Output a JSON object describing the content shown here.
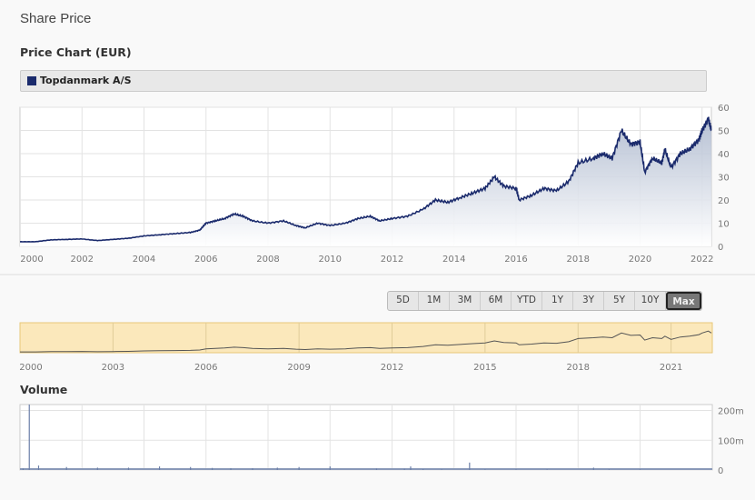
{
  "header": {
    "title": "Share Price",
    "subtitle": "Price Chart (EUR)",
    "volume_title": "Volume"
  },
  "legend": {
    "label": "Topdanmark A/S",
    "color": "#1a2a6c"
  },
  "ranges": {
    "buttons": [
      "5D",
      "1M",
      "3M",
      "6M",
      "YTD",
      "1Y",
      "3Y",
      "5Y",
      "10Y",
      "Max"
    ],
    "active": "Max"
  },
  "chart_data": [
    {
      "type": "area",
      "title": "Price Chart (EUR)",
      "series": [
        {
          "name": "Topdanmark A/S",
          "x": [
            2000,
            2000.5,
            2001,
            2001.5,
            2002,
            2002.5,
            2003,
            2003.5,
            2004,
            2004.5,
            2005,
            2005.5,
            2005.8,
            2006,
            2006.3,
            2006.6,
            2006.9,
            2007.2,
            2007.5,
            2008,
            2008.5,
            2008.9,
            2009.2,
            2009.6,
            2010,
            2010.5,
            2010.9,
            2011.3,
            2011.6,
            2012,
            2012.5,
            2013,
            2013.4,
            2013.8,
            2014.2,
            2014.6,
            2015.0,
            2015.3,
            2015.6,
            2016.0,
            2016.1,
            2016.5,
            2016.9,
            2017.3,
            2017.7,
            2018.0,
            2018.5,
            2018.8,
            2019.1,
            2019.4,
            2019.7,
            2020.0,
            2020.15,
            2020.4,
            2020.7,
            2020.8,
            2021.0,
            2021.3,
            2021.6,
            2021.9,
            2022.0,
            2022.2,
            2022.3
          ],
          "y": [
            2,
            2,
            2.8,
            3,
            3.2,
            2.5,
            3,
            3.5,
            4.5,
            5,
            5.5,
            6,
            7,
            10,
            11,
            12,
            14,
            13,
            11,
            10,
            11,
            9,
            8,
            10,
            9,
            10,
            12,
            13,
            11,
            12,
            13,
            16,
            20,
            19,
            21,
            23,
            25,
            30,
            26,
            25,
            20,
            22,
            25,
            24,
            28,
            36,
            38,
            40,
            38,
            50,
            44,
            45,
            32,
            38,
            36,
            42,
            34,
            40,
            42,
            46,
            50,
            55,
            50
          ]
        }
      ],
      "xlim": [
        2000,
        2022.3
      ],
      "ylim": [
        0,
        60
      ],
      "yticks": [
        0,
        10,
        20,
        30,
        40,
        50,
        60
      ],
      "xticks": [
        2000,
        2002,
        2004,
        2006,
        2008,
        2010,
        2012,
        2014,
        2016,
        2018,
        2020,
        2022
      ]
    },
    {
      "type": "line",
      "title": "Navigator",
      "xticks": [
        2000,
        2003,
        2006,
        2009,
        2012,
        2015,
        2018,
        2021
      ]
    },
    {
      "type": "bar",
      "title": "Volume",
      "ylim": [
        0,
        220
      ],
      "yticks": [
        0,
        100,
        200
      ],
      "ytick_labels": [
        "0",
        "100m",
        "200m"
      ],
      "x": [
        2000.1,
        2000.3,
        2000.6,
        2001.5,
        2002.5,
        2003.5,
        2004.5,
        2005.5,
        2006.2,
        2006.8,
        2007.5,
        2008.3,
        2009,
        2010,
        2011.5,
        2012.4,
        2012.6,
        2013,
        2013.6,
        2014.5,
        2015,
        2016,
        2017,
        2018.5,
        2019,
        2020
      ],
      "values": [
        5,
        220,
        15,
        10,
        8,
        8,
        12,
        10,
        7,
        6,
        6,
        8,
        10,
        12,
        5,
        4,
        12,
        3,
        2,
        25,
        2,
        2,
        2,
        8,
        2,
        2
      ]
    }
  ]
}
